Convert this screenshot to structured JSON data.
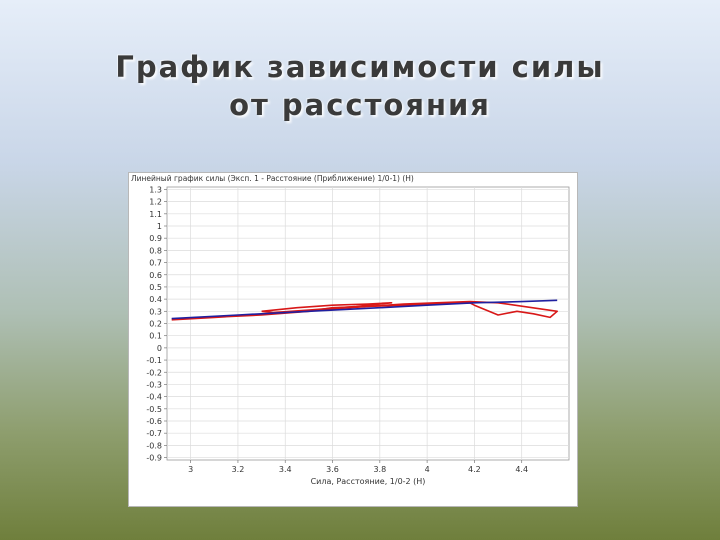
{
  "slide": {
    "title_line1": "График  зависимости  силы",
    "title_line2": "от расстояния"
  },
  "chart_data": {
    "type": "line",
    "title": "Линейный график силы (Эксп. 1 - Расстояние (Приближение) 1/0-1) (Н)",
    "xlabel": "Сила, Расстояние, 1/0-2 (Н)",
    "ylabel": "",
    "xlim": [
      2.9,
      4.6
    ],
    "ylim": [
      -0.92,
      1.32
    ],
    "x_ticks": [
      3,
      3.2,
      3.4,
      3.6,
      3.8,
      4,
      4.2,
      4.4
    ],
    "x_tick_labels": [
      "3",
      "3.2",
      "3.4",
      "3.6",
      "3.8",
      "4",
      "4.2",
      "4.4"
    ],
    "y_ticks": [
      1.3,
      1.2,
      1.1,
      1,
      0.9,
      0.8,
      0.7,
      0.6,
      0.5,
      0.4,
      0.3,
      0.2,
      0.1,
      0,
      -0.1,
      -0.2,
      -0.3,
      -0.4,
      -0.5,
      -0.6,
      -0.7,
      -0.8,
      -0.9
    ],
    "y_tick_labels": [
      "1.3",
      "1.2",
      "1.1",
      "1",
      "0.9",
      "0.8",
      "0.7",
      "0.6",
      "0.5",
      "0.4",
      "0.3",
      "0.2",
      "0.1",
      "0",
      "-0.1",
      "-0.2",
      "-0.3",
      "-0.4",
      "-0.5",
      "-0.6",
      "-0.7",
      "-0.8",
      "-0.9"
    ],
    "grid": true,
    "series": [
      {
        "color": "#d81818",
        "x": [
          2.92,
          3.3,
          3.5,
          3.6,
          3.75,
          3.9,
          4.0,
          4.18,
          4.2,
          4.3,
          4.38,
          4.45,
          4.52,
          4.55,
          4.3,
          4.18,
          3.9,
          3.6,
          3.35,
          3.1,
          2.92
        ],
        "y": [
          0.235,
          0.27,
          0.3,
          0.33,
          0.34,
          0.35,
          0.36,
          0.37,
          0.35,
          0.27,
          0.3,
          0.28,
          0.25,
          0.3,
          0.37,
          0.38,
          0.36,
          0.32,
          0.28,
          0.25,
          0.23
        ]
      },
      {
        "color": "#d81818",
        "x": [
          3.3,
          3.45,
          3.6,
          3.75,
          3.85,
          3.7,
          3.5,
          3.35,
          3.3
        ],
        "y": [
          0.3,
          0.33,
          0.35,
          0.36,
          0.37,
          0.34,
          0.31,
          0.29,
          0.3
        ]
      },
      {
        "color": "#2020a0",
        "x": [
          2.92,
          3.2,
          3.5,
          3.8,
          4.0,
          4.2,
          4.4,
          4.55
        ],
        "y": [
          0.24,
          0.27,
          0.3,
          0.33,
          0.35,
          0.37,
          0.38,
          0.39
        ]
      }
    ]
  }
}
